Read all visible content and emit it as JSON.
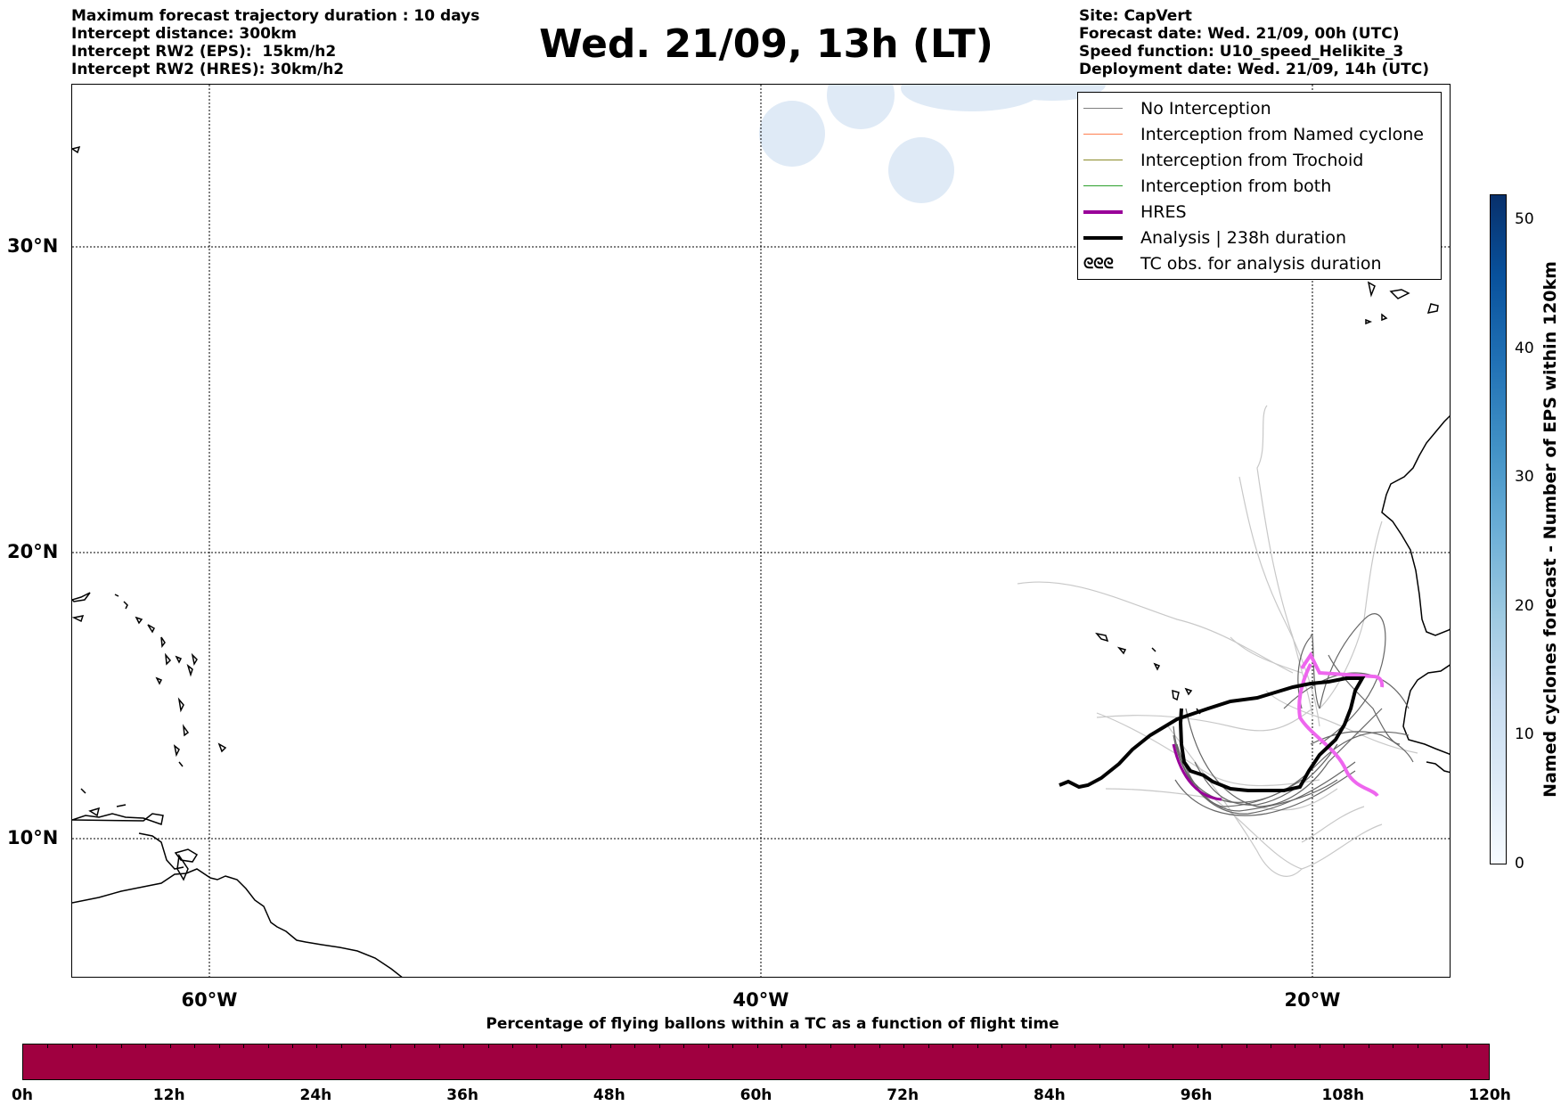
{
  "header_left": [
    "Maximum forecast trajectory duration : 10 days",
    "Intercept distance: 300km",
    "Intercept RW2 (EPS):  15km/h2",
    "Intercept RW2 (HRES): 30km/h2"
  ],
  "title": "Wed. 21/09, 13h (LT)",
  "header_right": [
    "Site: CapVert",
    "Forecast date: Wed. 21/09, 00h (UTC)",
    "Speed function: U10_speed_Helikite_3",
    "Deployment date: Wed. 21/09, 14h (UTC)"
  ],
  "lat_labels": [
    "30°N",
    "20°N",
    "10°N"
  ],
  "lon_labels": [
    "60°W",
    "40°W",
    "20°W"
  ],
  "legend": [
    {
      "label": "No Interception",
      "color": "#7f7f7f",
      "style": "thin"
    },
    {
      "label": "Interception from Named cyclone",
      "color": "#ff7f50",
      "style": "thin"
    },
    {
      "label": "Interception from Trochoid",
      "color": "#8b8b2a",
      "style": "thin"
    },
    {
      "label": "Interception from both",
      "color": "#2ca02c",
      "style": "thin"
    },
    {
      "label": "HRES",
      "color": "#990099",
      "style": "thick"
    },
    {
      "label": "Analysis | 238h duration",
      "color": "#000000",
      "style": "thick"
    },
    {
      "label": "TC obs. for analysis duration",
      "color": "#000000",
      "style": "symbol",
      "symbol": "ᘓᘓᘓ"
    }
  ],
  "right_colorbar": {
    "label": "Named cyclones forecast - Number of EPS within 120km",
    "ticks": [
      "0",
      "10",
      "20",
      "30",
      "40",
      "50"
    ],
    "range": [
      0,
      52
    ],
    "colors": [
      "#f7fbff",
      "#08306b"
    ]
  },
  "bottom_colorbar": {
    "label": "Percentage of flying ballons within a TC as a function of flight time",
    "ticks": [
      "0h",
      "12h",
      "24h",
      "36h",
      "48h",
      "60h",
      "72h",
      "84h",
      "96h",
      "108h",
      "120h"
    ],
    "color": "#a00040"
  },
  "colors": {
    "eps_light": "#c8c8c8",
    "eps_dark": "#666666",
    "hres": "#ee66ee",
    "analysis": "#000000",
    "tc_blob": "#dfeaf6"
  }
}
